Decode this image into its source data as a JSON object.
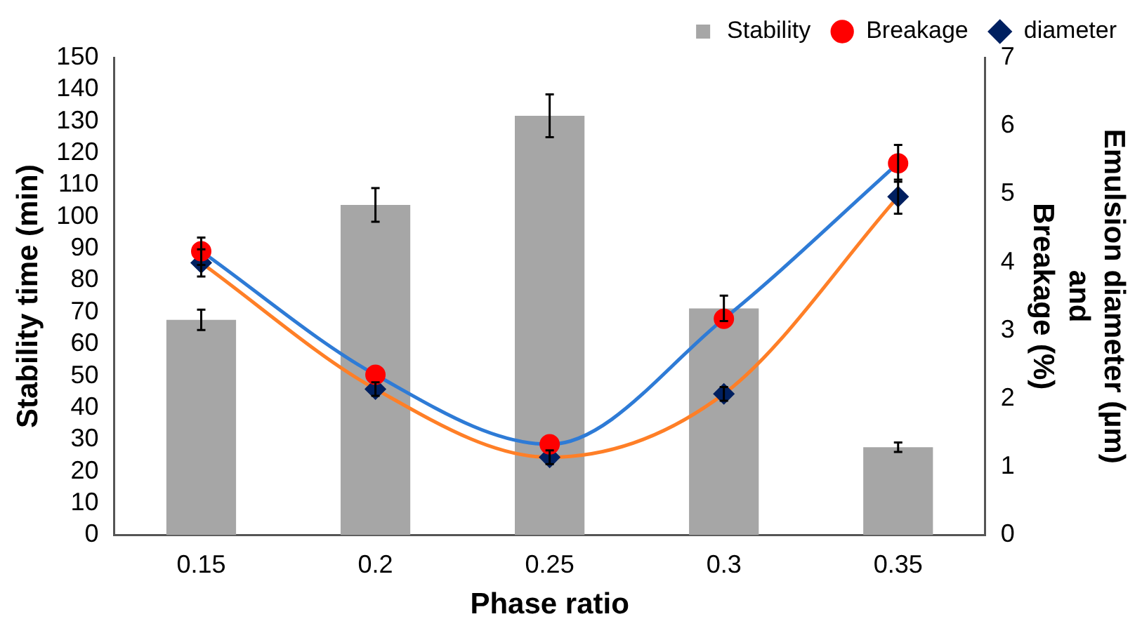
{
  "chart_data": {
    "type": "bar",
    "xlabel": "Phase ratio",
    "ylabel": "Stability time (min)",
    "y2label": "Emulsion diameter (µm)\nand\nBreakage (%)",
    "categories": [
      "0.15",
      "0.2",
      "0.25",
      "0.3",
      "0.35"
    ],
    "series": [
      {
        "name": "Stability",
        "color": "#a6a6a6",
        "values": [
          67.6,
          103.7,
          131.7,
          71.2,
          27.6
        ],
        "errors": [
          3.2,
          5.3,
          6.7,
          4,
          1.5
        ]
      },
      {
        "name": "Breakage",
        "type": "line",
        "axis": "y2",
        "color": "#2e7bd6",
        "colors": [
          "#ff0000",
          "#ff0000",
          "#ff0000",
          "#ff0000",
          "#ff0000"
        ],
        "marker": "circle",
        "values": [
          4.16,
          2.35,
          1.33,
          3.17,
          5.45
        ],
        "errors": [
          0.2,
          null,
          null,
          null,
          0.27
        ]
      },
      {
        "name": "diameter",
        "type": "line",
        "axis": "y2",
        "color": "#ff7f27",
        "colors": [
          "#002060",
          "#002060",
          "#002060",
          "#002060",
          "#002060"
        ],
        "marker": "diamond",
        "values": [
          3.99,
          2.14,
          1.14,
          2.07,
          4.96
        ],
        "errors": [
          0.2,
          0.1,
          0.1,
          0.1,
          0.25
        ]
      }
    ],
    "ylim": [
      0,
      150
    ],
    "yticks": [
      0,
      10,
      20,
      30,
      40,
      50,
      60,
      70,
      80,
      90,
      100,
      110,
      120,
      130,
      140,
      150
    ],
    "y2lim": [
      0,
      7
    ],
    "y2ticks": [
      0,
      1,
      2,
      3,
      4,
      5,
      6,
      7
    ],
    "grid": false,
    "legend": "top",
    "line_style": "solid"
  }
}
